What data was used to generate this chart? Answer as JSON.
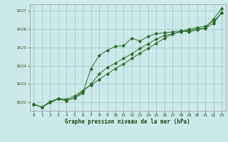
{
  "title": "Graphe pression niveau de la mer (hPa)",
  "background_color": "#cce9e9",
  "grid_color": "#aacccc",
  "line_color": "#2d6b2d",
  "x_ticks": [
    0,
    1,
    2,
    3,
    4,
    5,
    6,
    7,
    8,
    9,
    10,
    11,
    12,
    13,
    14,
    15,
    16,
    17,
    18,
    19,
    20,
    21,
    22,
    23
  ],
  "y_ticks": [
    1022,
    1023,
    1024,
    1025,
    1026,
    1027
  ],
  "ylim": [
    1021.55,
    1027.35
  ],
  "xlim": [
    -0.5,
    23.5
  ],
  "hours": [
    0,
    1,
    2,
    3,
    4,
    5,
    6,
    7,
    8,
    9,
    10,
    11,
    12,
    13,
    14,
    15,
    16,
    17,
    18,
    19,
    20,
    21,
    22,
    23
  ],
  "line_jagged": [
    1021.9,
    1021.75,
    1022.0,
    1022.2,
    1022.1,
    1022.25,
    1022.5,
    1023.85,
    1024.55,
    1024.85,
    1025.05,
    1025.1,
    1025.5,
    1025.35,
    1025.6,
    1025.75,
    1025.8,
    1025.85,
    1025.9,
    1025.85,
    1025.95,
    1026.05,
    1026.55,
    1027.1
  ],
  "line_mid": [
    1021.9,
    1021.75,
    1022.0,
    1022.2,
    1022.1,
    1022.25,
    1022.6,
    1023.0,
    1023.55,
    1023.9,
    1024.15,
    1024.4,
    1024.65,
    1024.95,
    1025.2,
    1025.45,
    1025.65,
    1025.75,
    1025.85,
    1025.92,
    1026.0,
    1026.05,
    1026.3,
    1026.9
  ],
  "line_linear": [
    1021.9,
    1021.75,
    1022.05,
    1022.22,
    1022.18,
    1022.35,
    1022.65,
    1022.95,
    1023.25,
    1023.55,
    1023.85,
    1024.1,
    1024.4,
    1024.68,
    1024.95,
    1025.22,
    1025.5,
    1025.72,
    1025.88,
    1025.98,
    1026.08,
    1026.15,
    1026.42,
    1026.88
  ]
}
